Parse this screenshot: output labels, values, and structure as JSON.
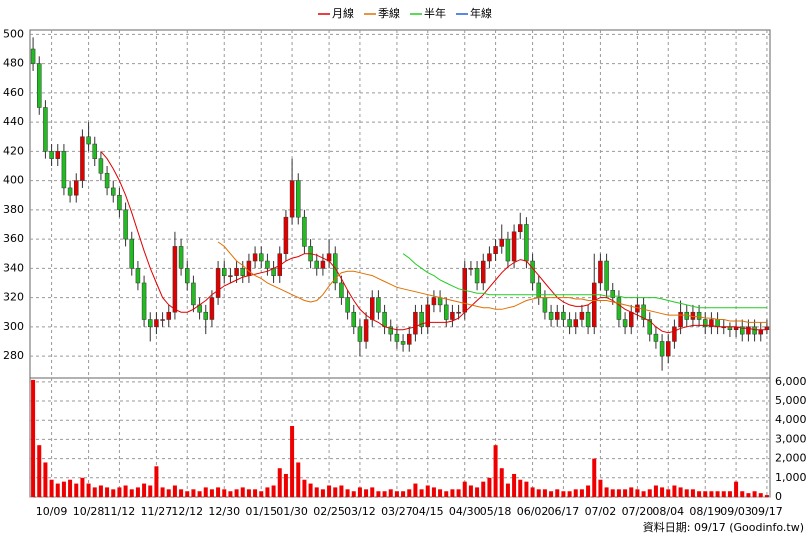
{
  "chart_data": {
    "type": "candlestick",
    "footer": "資料日期: 09/17 (Goodinfo.tw)",
    "categories": [
      null,
      null,
      null,
      "10/09",
      null,
      null,
      null,
      null,
      null,
      "10/28",
      null,
      null,
      null,
      null,
      "11/12",
      null,
      null,
      null,
      null,
      null,
      "11/27",
      null,
      null,
      null,
      null,
      "12/12",
      null,
      null,
      null,
      null,
      null,
      "12/30",
      null,
      null,
      null,
      null,
      null,
      "01/15",
      null,
      null,
      null,
      null,
      "01/30",
      null,
      null,
      null,
      null,
      null,
      "02/25",
      null,
      null,
      null,
      null,
      "03/12",
      null,
      null,
      null,
      null,
      null,
      "03/27",
      null,
      null,
      null,
      null,
      "04/15",
      null,
      null,
      null,
      null,
      null,
      "04/30",
      null,
      null,
      null,
      null,
      "05/18",
      null,
      null,
      null,
      null,
      null,
      "06/02",
      null,
      null,
      null,
      null,
      "06/17",
      null,
      null,
      null,
      null,
      null,
      "07/02",
      null,
      null,
      null,
      null,
      null,
      "07/20",
      null,
      null,
      null,
      null,
      "08/04",
      null,
      null,
      null,
      null,
      null,
      "08/19",
      null,
      null,
      null,
      null,
      "09/03",
      null,
      null,
      null,
      null,
      "09/17"
    ],
    "open": [
      490,
      480,
      450,
      420,
      415,
      420,
      395,
      390,
      400,
      430,
      425,
      415,
      405,
      395,
      390,
      380,
      360,
      340,
      330,
      305,
      300,
      305,
      305,
      310,
      355,
      340,
      330,
      315,
      310,
      305,
      320,
      340,
      335,
      335,
      340,
      335,
      345,
      350,
      345,
      340,
      335,
      350,
      375,
      400,
      375,
      355,
      345,
      340,
      345,
      350,
      330,
      320,
      310,
      300,
      290,
      305,
      320,
      310,
      300,
      295,
      290,
      288,
      295,
      310,
      300,
      315,
      320,
      315,
      305,
      310,
      310,
      340,
      340,
      330,
      345,
      350,
      355,
      360,
      345,
      365,
      370,
      345,
      330,
      320,
      310,
      305,
      310,
      305,
      300,
      305,
      310,
      300,
      330,
      345,
      325,
      320,
      305,
      300,
      310,
      315,
      305,
      295,
      290,
      280,
      290,
      300,
      310,
      305,
      310,
      305,
      300,
      305,
      300,
      300,
      298,
      300,
      295,
      300,
      295,
      298
    ],
    "high": [
      498,
      485,
      455,
      425,
      425,
      425,
      400,
      405,
      435,
      440,
      430,
      420,
      410,
      400,
      395,
      385,
      365,
      345,
      335,
      310,
      310,
      310,
      315,
      365,
      360,
      345,
      335,
      320,
      315,
      325,
      345,
      345,
      340,
      345,
      345,
      350,
      355,
      355,
      350,
      345,
      355,
      380,
      415,
      405,
      380,
      360,
      350,
      350,
      360,
      355,
      335,
      325,
      315,
      305,
      310,
      325,
      325,
      315,
      305,
      300,
      295,
      300,
      315,
      315,
      320,
      325,
      325,
      320,
      315,
      315,
      345,
      345,
      345,
      350,
      355,
      360,
      370,
      365,
      370,
      378,
      375,
      350,
      335,
      325,
      315,
      315,
      315,
      310,
      310,
      315,
      315,
      350,
      350,
      350,
      330,
      325,
      310,
      315,
      320,
      320,
      310,
      300,
      295,
      295,
      305,
      318,
      315,
      315,
      315,
      310,
      310,
      310,
      305,
      303,
      305,
      305,
      305,
      305,
      303,
      305
    ],
    "low": [
      475,
      445,
      415,
      410,
      410,
      390,
      385,
      385,
      395,
      420,
      410,
      400,
      390,
      385,
      375,
      355,
      335,
      325,
      300,
      290,
      295,
      300,
      300,
      305,
      335,
      325,
      310,
      305,
      295,
      300,
      315,
      330,
      330,
      330,
      330,
      330,
      340,
      340,
      335,
      330,
      330,
      345,
      370,
      370,
      350,
      340,
      335,
      335,
      340,
      325,
      315,
      305,
      295,
      280,
      285,
      300,
      305,
      295,
      290,
      285,
      283,
      283,
      290,
      295,
      295,
      310,
      310,
      300,
      300,
      305,
      305,
      335,
      325,
      325,
      340,
      345,
      350,
      340,
      340,
      360,
      340,
      325,
      315,
      305,
      300,
      300,
      300,
      295,
      295,
      300,
      295,
      295,
      325,
      320,
      315,
      300,
      295,
      295,
      305,
      300,
      290,
      285,
      270,
      275,
      285,
      295,
      300,
      300,
      300,
      295,
      295,
      295,
      295,
      293,
      293,
      290,
      290,
      290,
      290,
      295
    ],
    "close": [
      480,
      450,
      420,
      415,
      420,
      395,
      390,
      400,
      430,
      425,
      415,
      405,
      395,
      390,
      380,
      360,
      340,
      330,
      305,
      300,
      305,
      305,
      310,
      355,
      340,
      330,
      315,
      310,
      305,
      320,
      340,
      335,
      335,
      340,
      335,
      345,
      350,
      345,
      340,
      335,
      350,
      375,
      400,
      375,
      355,
      345,
      340,
      345,
      350,
      330,
      320,
      310,
      300,
      290,
      305,
      320,
      310,
      300,
      295,
      290,
      288,
      295,
      310,
      300,
      315,
      320,
      315,
      305,
      310,
      310,
      340,
      340,
      330,
      345,
      350,
      355,
      360,
      345,
      365,
      370,
      345,
      330,
      320,
      310,
      305,
      310,
      305,
      300,
      305,
      310,
      300,
      330,
      345,
      325,
      320,
      305,
      300,
      310,
      315,
      305,
      295,
      290,
      280,
      290,
      300,
      310,
      305,
      310,
      305,
      300,
      305,
      300,
      300,
      298,
      300,
      295,
      300,
      295,
      298,
      300
    ],
    "volume": [
      6100,
      2700,
      1800,
      900,
      700,
      800,
      900,
      700,
      1000,
      700,
      500,
      600,
      500,
      400,
      500,
      600,
      400,
      500,
      700,
      600,
      1600,
      500,
      400,
      600,
      400,
      300,
      400,
      300,
      500,
      400,
      500,
      400,
      300,
      400,
      500,
      400,
      400,
      300,
      500,
      600,
      1500,
      1200,
      3700,
      1800,
      900,
      700,
      500,
      400,
      600,
      500,
      600,
      400,
      300,
      500,
      400,
      500,
      300,
      300,
      400,
      300,
      300,
      400,
      700,
      400,
      600,
      500,
      400,
      300,
      400,
      400,
      800,
      600,
      500,
      800,
      1000,
      2700,
      1500,
      700,
      1200,
      900,
      800,
      500,
      400,
      400,
      300,
      400,
      300,
      300,
      400,
      400,
      600,
      2000,
      900,
      500,
      400,
      400,
      400,
      500,
      400,
      300,
      400,
      600,
      500,
      400,
      600,
      500,
      400,
      400,
      300,
      300,
      300,
      300,
      300,
      300,
      800,
      300,
      200,
      300,
      200,
      100
    ],
    "up_color": "#e00000",
    "down_color": "#22bb22",
    "volume_color": "#ee0000",
    "series": [
      {
        "name": "月線",
        "color": "#e00000",
        "values": [
          null,
          null,
          null,
          null,
          null,
          null,
          null,
          null,
          null,
          null,
          null,
          420,
          415,
          408,
          400,
          390,
          378,
          365,
          352,
          340,
          330,
          320,
          315,
          312,
          310,
          310,
          312,
          315,
          318,
          322,
          325,
          328,
          330,
          332,
          334,
          335,
          336,
          337,
          338,
          340,
          342,
          345,
          347,
          348,
          350,
          350,
          349,
          347,
          345,
          340,
          333,
          325,
          318,
          312,
          308,
          305,
          303,
          300,
          299,
          298,
          298,
          299,
          300,
          302,
          303,
          303,
          303,
          303,
          304,
          306,
          310,
          314,
          318,
          322,
          327,
          332,
          337,
          341,
          344,
          346,
          345,
          340,
          335,
          330,
          325,
          320,
          317,
          315,
          314,
          314,
          315,
          318,
          320,
          320,
          318,
          315,
          312,
          310,
          308,
          306,
          304,
          300,
          297,
          296,
          297,
          299,
          300,
          301,
          301,
          301,
          301,
          300,
          300,
          300,
          300,
          299,
          299,
          298,
          298,
          298
        ]
      },
      {
        "name": "季線",
        "color": "#e07000",
        "values": [
          null,
          null,
          null,
          null,
          null,
          null,
          null,
          null,
          null,
          null,
          null,
          null,
          null,
          null,
          null,
          null,
          null,
          null,
          null,
          null,
          null,
          null,
          null,
          null,
          null,
          null,
          null,
          null,
          null,
          null,
          358,
          355,
          350,
          345,
          342,
          338,
          335,
          333,
          330,
          328,
          326,
          324,
          322,
          320,
          318,
          317,
          318,
          322,
          328,
          333,
          337,
          338,
          338,
          337,
          336,
          335,
          333,
          331,
          329,
          327,
          326,
          325,
          324,
          323,
          322,
          321,
          320,
          319,
          318,
          317,
          316,
          315,
          314,
          313,
          313,
          312,
          312,
          313,
          314,
          316,
          318,
          319,
          320,
          320,
          320,
          320,
          320,
          320,
          319,
          319,
          318,
          318,
          318,
          318,
          317,
          316,
          315,
          314,
          313,
          312,
          311,
          310,
          309,
          308,
          308,
          308,
          308,
          307,
          307,
          306,
          306,
          305,
          305,
          304,
          304,
          304,
          303,
          303,
          303,
          303
        ]
      },
      {
        "name": "半年",
        "color": "#22cc22",
        "values": [
          null,
          null,
          null,
          null,
          null,
          null,
          null,
          null,
          null,
          null,
          null,
          null,
          null,
          null,
          null,
          null,
          null,
          null,
          null,
          null,
          null,
          null,
          null,
          null,
          null,
          null,
          null,
          null,
          null,
          null,
          null,
          null,
          null,
          null,
          null,
          null,
          null,
          null,
          null,
          null,
          null,
          null,
          null,
          null,
          null,
          null,
          null,
          null,
          null,
          null,
          null,
          null,
          null,
          null,
          null,
          null,
          null,
          null,
          null,
          null,
          350,
          347,
          343,
          340,
          337,
          335,
          332,
          330,
          328,
          326,
          325,
          324,
          323,
          323,
          322,
          322,
          322,
          322,
          322,
          322,
          322,
          322,
          322,
          322,
          322,
          322,
          322,
          322,
          322,
          322,
          322,
          322,
          322,
          321,
          321,
          321,
          320,
          320,
          320,
          320,
          320,
          320,
          319,
          318,
          317,
          316,
          315,
          314,
          313,
          313,
          313,
          313,
          313,
          313,
          313,
          313,
          313,
          313,
          313,
          313
        ]
      },
      {
        "name": "年線",
        "color": "#2060e0",
        "values": [
          null,
          null,
          null,
          null,
          null,
          null,
          null,
          null,
          null,
          null,
          null,
          null,
          null,
          null,
          null,
          null,
          null,
          null,
          null,
          null,
          null,
          null,
          null,
          null,
          null,
          null,
          null,
          null,
          null,
          null,
          null,
          null,
          null,
          null,
          null,
          null,
          null,
          null,
          null,
          null,
          null,
          null,
          null,
          null,
          null,
          null,
          null,
          null,
          null,
          null,
          null,
          null,
          null,
          null,
          null,
          null,
          null,
          null,
          null,
          null,
          null,
          null,
          null,
          null,
          null,
          null,
          null,
          null,
          null,
          null,
          null,
          null,
          null,
          null,
          null,
          null,
          null,
          null,
          null,
          null,
          null,
          null,
          null,
          null,
          null,
          null,
          null,
          null,
          null,
          null,
          null,
          null,
          null,
          null,
          null,
          null,
          null,
          null,
          null,
          null,
          null,
          null,
          null,
          null,
          null,
          null,
          null,
          null,
          null,
          null,
          null,
          null,
          null,
          null,
          null,
          null,
          null,
          null,
          null,
          null
        ]
      }
    ],
    "ylim": [
      265,
      503
    ],
    "yticks": [
      280,
      300,
      320,
      340,
      360,
      380,
      400,
      420,
      440,
      460,
      480,
      500
    ],
    "volume_ylim": [
      0,
      6200
    ],
    "volume_yticks": [
      0,
      {
        "value": 1000,
        "label": "1,000"
      },
      {
        "value": 2000,
        "label": "2,000"
      },
      {
        "value": 3000,
        "label": "3,000"
      },
      {
        "value": 4000,
        "label": "4,000"
      },
      {
        "value": 5000,
        "label": "5,000"
      },
      {
        "value": 6000,
        "label": "6,000"
      }
    ],
    "grid": true
  }
}
